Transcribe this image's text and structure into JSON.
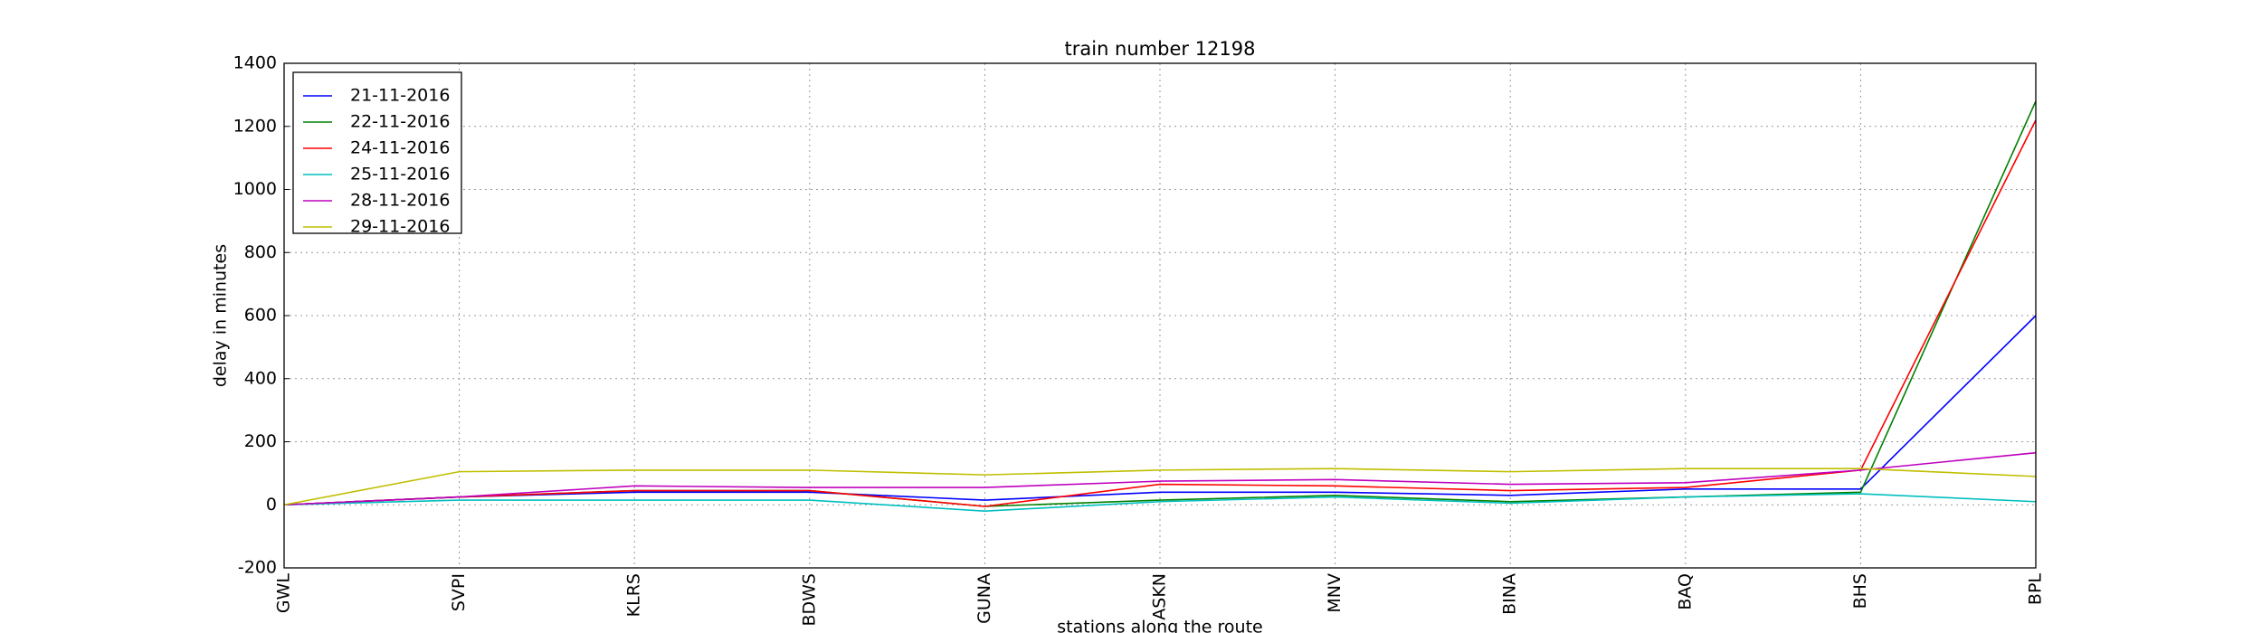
{
  "chart_data": {
    "type": "line",
    "title": "train number 12198",
    "x_label": "stations along the route",
    "y_label": "delay in minutes",
    "categories": [
      "GWL",
      "SVPI",
      "KLRS",
      "BDWS",
      "GUNA",
      "ASKN",
      "MNV",
      "BINA",
      "BAQ",
      "BHS",
      "BPL"
    ],
    "series": [
      {
        "name": "21-11-2016",
        "color": "#0000ff",
        "values": [
          0,
          25,
          40,
          40,
          15,
          40,
          40,
          30,
          50,
          50,
          600
        ]
      },
      {
        "name": "22-11-2016",
        "color": "#008000",
        "values": [
          0,
          25,
          45,
          45,
          -5,
          15,
          30,
          10,
          25,
          40,
          1280
        ]
      },
      {
        "name": "24-11-2016",
        "color": "#ff0000",
        "values": [
          0,
          25,
          45,
          45,
          -5,
          65,
          60,
          45,
          55,
          110,
          1220
        ]
      },
      {
        "name": "25-11-2016",
        "color": "#00bfbf",
        "values": [
          0,
          15,
          15,
          15,
          -20,
          10,
          25,
          5,
          25,
          35,
          10
        ]
      },
      {
        "name": "28-11-2016",
        "color": "#bf00bf",
        "values": [
          0,
          25,
          60,
          55,
          55,
          75,
          80,
          65,
          70,
          110,
          165
        ]
      },
      {
        "name": "29-11-2016",
        "color": "#bfbf00",
        "values": [
          0,
          105,
          110,
          110,
          95,
          110,
          115,
          105,
          115,
          115,
          90
        ]
      }
    ],
    "ylim": [
      -200,
      1400
    ],
    "yticks": [
      -200,
      0,
      200,
      400,
      600,
      800,
      1000,
      1200,
      1400
    ],
    "grid": true,
    "legend": "upper-left"
  }
}
